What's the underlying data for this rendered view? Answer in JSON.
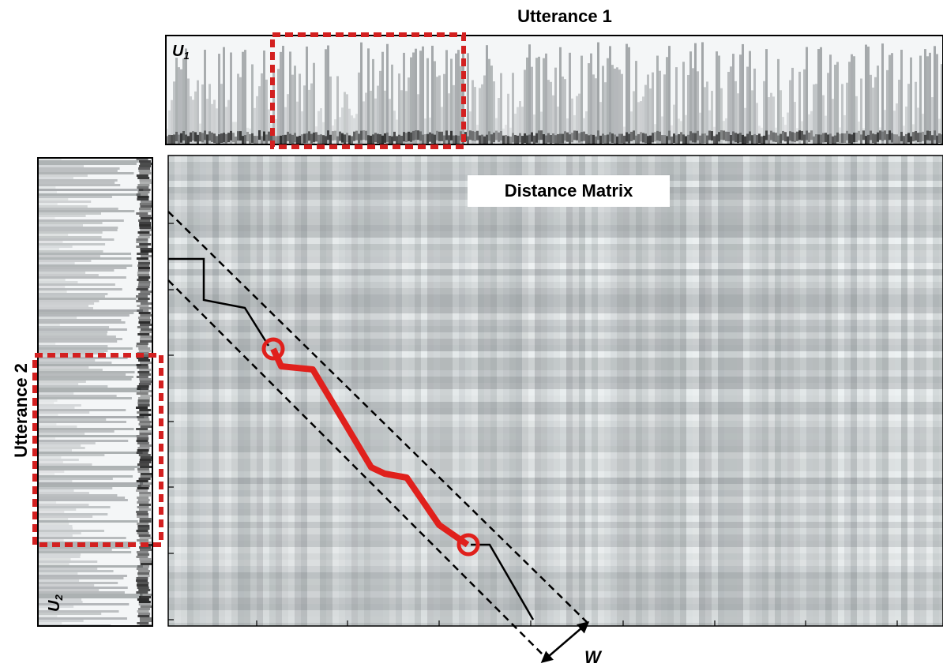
{
  "figure": {
    "top_title": "Utterance 1",
    "side_title": "Utterance 2",
    "top_label": {
      "letter": "U",
      "subscript": "1"
    },
    "side_label": {
      "letter": "U",
      "subscript": "2"
    },
    "matrix_label": "Distance Matrix",
    "window_label": "W"
  }
}
